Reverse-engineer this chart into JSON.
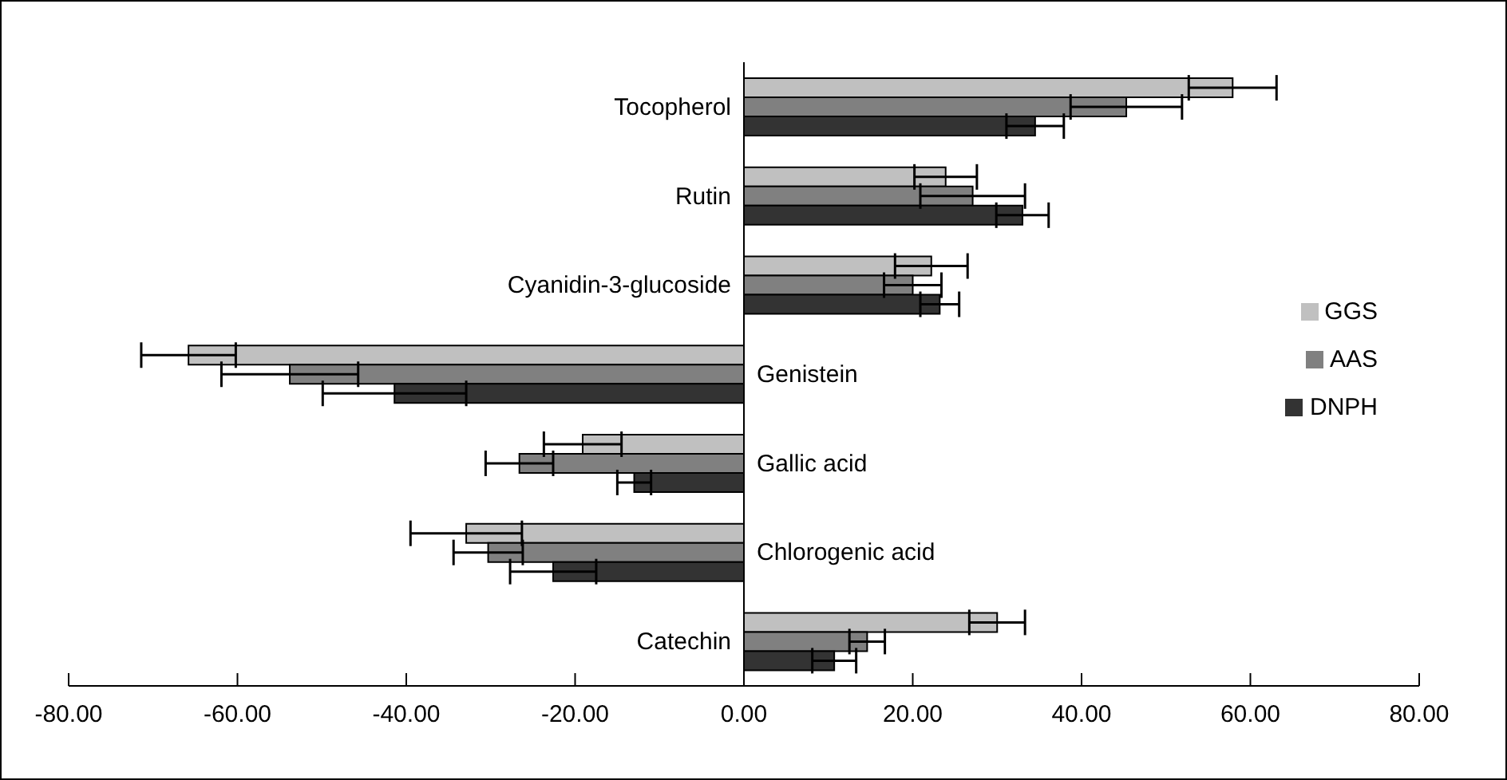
{
  "chart_data": {
    "type": "bar",
    "orientation": "horizontal",
    "categories": [
      "Tocopherol",
      "Rutin",
      "Cyanidin-3-glucoside",
      "Genistein",
      "Gallic acid",
      "Chlorogenic acid",
      "Catechin"
    ],
    "series": [
      {
        "name": "GGS",
        "color": "#c0c0c0",
        "values": [
          57.9,
          23.9,
          22.2,
          -65.8,
          -19.1,
          -32.9,
          30.0
        ],
        "errors": [
          5.2,
          3.7,
          4.3,
          5.6,
          4.6,
          6.6,
          3.3
        ]
      },
      {
        "name": "AAS",
        "color": "#808080",
        "values": [
          45.3,
          27.1,
          20.0,
          -53.8,
          -26.6,
          -30.3,
          14.6
        ],
        "errors": [
          6.6,
          6.2,
          3.4,
          8.1,
          4.0,
          4.1,
          2.1
        ]
      },
      {
        "name": "DNPH",
        "color": "#333333",
        "values": [
          34.5,
          33.0,
          23.2,
          -41.4,
          -13.0,
          -22.6,
          10.7
        ],
        "errors": [
          3.4,
          3.1,
          2.3,
          8.5,
          2.0,
          5.1,
          2.6
        ]
      }
    ],
    "xlim": [
      -80,
      80
    ],
    "xticks": [
      {
        "value": -80,
        "label": "-80.00"
      },
      {
        "value": -60,
        "label": "-60.00"
      },
      {
        "value": -40,
        "label": "-40.00"
      },
      {
        "value": -20,
        "label": "-20.00"
      },
      {
        "value": 0,
        "label": "0.00"
      },
      {
        "value": 20,
        "label": "20.00"
      },
      {
        "value": 40,
        "label": "40.00"
      },
      {
        "value": 60,
        "label": "60.00"
      },
      {
        "value": 80,
        "label": "80.00"
      }
    ],
    "grid": false,
    "legend": "right"
  }
}
